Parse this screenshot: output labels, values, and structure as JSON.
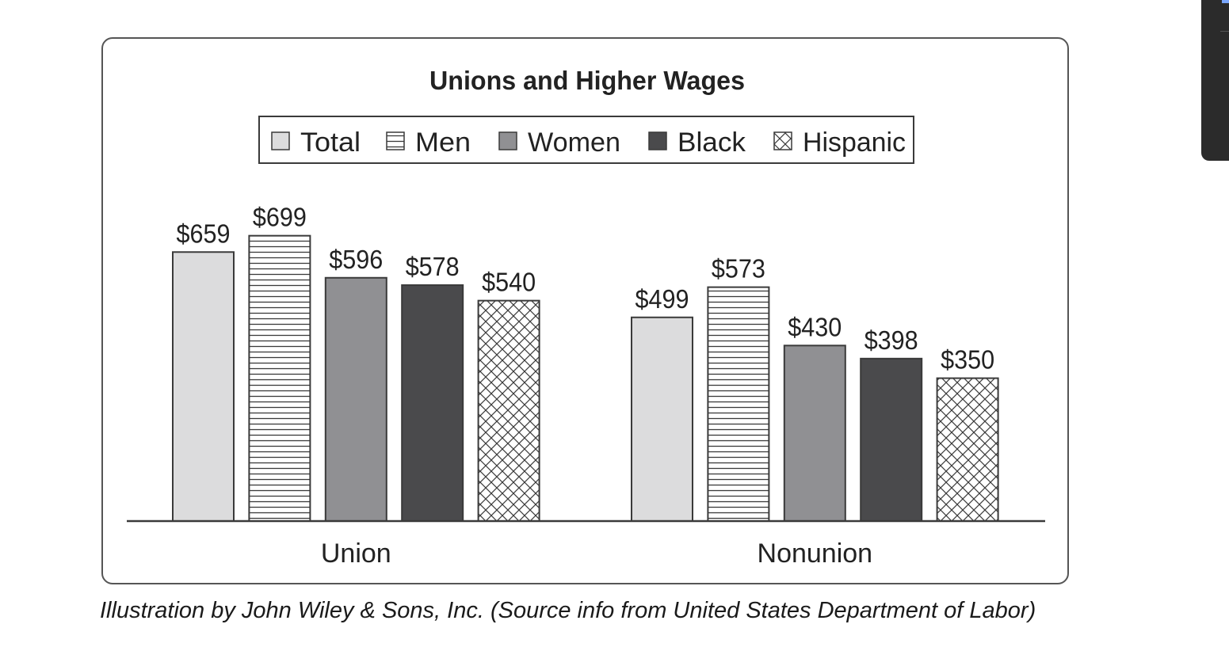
{
  "caption": "Illustration by John Wiley & Sons, Inc. (Source info from United States Department of Labor)",
  "colors": {
    "Total": "#dcdcdd",
    "Men": "#ffffff",
    "Women": "#909093",
    "Black": "#4a4a4c",
    "Hispanic": "#ffffff",
    "stroke": "#3a3a3a",
    "text": "#222222"
  },
  "patterns": {
    "Total": "solid",
    "Men": "horizontal-lines",
    "Women": "solid",
    "Black": "solid",
    "Hispanic": "crosshatch"
  },
  "chart_data": {
    "type": "bar",
    "title": "Unions and Higher Wages",
    "categories": [
      "Union",
      "Nonunion"
    ],
    "series": [
      {
        "name": "Total",
        "values": [
          659,
          499
        ],
        "labels": [
          "$659",
          "$499"
        ]
      },
      {
        "name": "Men",
        "values": [
          699,
          573
        ],
        "labels": [
          "$699",
          "$573"
        ]
      },
      {
        "name": "Women",
        "values": [
          596,
          430
        ],
        "labels": [
          "$596",
          "$430"
        ]
      },
      {
        "name": "Black",
        "values": [
          578,
          398
        ],
        "labels": [
          "$578",
          "$398"
        ]
      },
      {
        "name": "Hispanic",
        "values": [
          540,
          350
        ],
        "labels": [
          "$540",
          "$350"
        ]
      }
    ],
    "ylim": [
      0,
      700
    ],
    "grid": false,
    "legend_position": "top"
  }
}
